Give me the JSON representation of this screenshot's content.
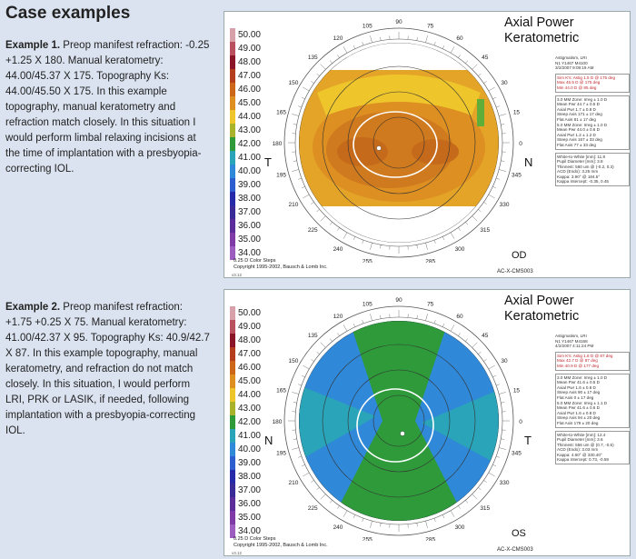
{
  "heading": "Case examples",
  "scale_labels": [
    "50.00",
    "49.00",
    "48.00",
    "47.00",
    "46.00",
    "45.00",
    "44.00",
    "43.00",
    "42.00",
    "41.00",
    "40.00",
    "39.00",
    "38.00",
    "37.00",
    "36.00",
    "35.00",
    "34.00"
  ],
  "scale_colors": [
    "#d8a0a8",
    "#b85060",
    "#8a1428",
    "#b33d1c",
    "#cc6618",
    "#dd9020",
    "#eec52a",
    "#a8b22a",
    "#2e9a3a",
    "#2aa4b8",
    "#2f88d8",
    "#2c5ed0",
    "#262aa8",
    "#3a2a98",
    "#5c2c9a",
    "#7e3aa6",
    "#9c5cc0"
  ],
  "examples": [
    {
      "label": "Example 1.",
      "text": " Preop manifest refraction: -0.25 +1.25 X 180. Manual keratometry: 44.00/45.37 X 175. Topography Ks: 44.00/45.50 X 175. In this example topography, manual keratometry and refraction match closely. In this situation I would perform limbal relaxing incisions at the time of implantation with a presbyopia-correcting IOL.",
      "map": {
        "title_line1": "Axial Power",
        "title_line2": "Keratometric",
        "side_left": "T",
        "side_right": "N",
        "eye": "OD",
        "foot_line1": "0.25 D Color Steps",
        "foot_line2": "Copyright 1995-2002, Bausch & Lomb Inc.",
        "device_id": "AC-X-CMS003",
        "version": "v3.12",
        "info": [
          "Astigmatism, LRI",
          "N1 Y1467 M4100",
          "3/2/2007 9:09:19 AM"
        ],
        "sim_k": [
          "Sim K's: Astig 1.5 D @ 175 deg",
          "Max 45.5 D @ 175 deg",
          "Min 44.0 D @ 85 deg"
        ],
        "zones": [
          "3.0 MM Zone: Irreg ± 1.0 D",
          "Mean Pwr 44.7 ± 0.5 D",
          "Axial Pwr 1.7 ± 0.8 D",
          "Steep Axis 171 ± 17 deg",
          "Flat Axis 81 ± 17 deg",
          "5.0 MM Zone: Irreg ± 1.0 D",
          "Mean Pwr 44.0 ± 0.6 D",
          "Axial Pwr 1.2 ± 1.2 D",
          "Steep Axis 167 ± 33 deg",
          "Flat Axis 77 ± 33 deg"
        ],
        "misc": [
          "White-to-White [mm]: 11.8",
          "Pupil Diameter [mm]: 3.8",
          "Thinnest: 560 um @ (-0.2, 0.3)",
          "ACD (Endo): 3.25 mm",
          "Kappa: 3.90° @ 184.5°",
          "Kappa Intercept: -0.35, 0.45"
        ],
        "angles": [
          "120",
          "105",
          "90",
          "75",
          "60",
          "135",
          "45",
          "150",
          "30",
          "165",
          "15",
          "180",
          "0",
          "195",
          "345",
          "210",
          "330",
          "225",
          "315",
          "240",
          "300",
          "255",
          "270",
          "285"
        ],
        "palette": "warm"
      }
    },
    {
      "label": "Example 2.",
      "text": " Preop manifest refraction: +1.75 +0.25 X 75. Manual keratometry: 41.00/42.37 X 95. Topography Ks: 40.9/42.7 X 87. In this example topography, manual keratometry, and refraction do not match closely. In this situation, I would perform LRI, PRK or LASIK, if needed, following implantation with a presbyopia-correcting IOL.",
      "map": {
        "title_line1": "Axial Power",
        "title_line2": "Keratometric",
        "side_left": "N",
        "side_right": "T",
        "eye": "OS",
        "foot_line1": "0.25 D Color Steps",
        "foot_line2": "Copyright 1995-2002, Bausch & Lomb Inc.",
        "device_id": "AC-X-CMS003",
        "version": "v3.12",
        "info": [
          "Astigmatism, LRI",
          "N1 Y1467 M4168",
          "4/2/2007 4:11:24 PM"
        ],
        "sim_k": [
          "Sim K's: Astig 1.8 D @ 87 deg",
          "Max 42.7 D @ 87 deg",
          "Min 40.9 D @ 177 deg"
        ],
        "zones": [
          "3.0 MM Zone: Irreg ± 1.0 D",
          "Mean Pwr 41.6 ± 0.5 D",
          "Axial Pwr 1.6 ± 0.8 D",
          "Steep Axis 90 ± 17 deg",
          "Flat Axis 0 ± 17 deg",
          "5.0 MM Zone: Irreg ± 1.1 D",
          "Mean Pwr 41.6 ± 0.6 D",
          "Axial Pwr 1.6 ± 0.8 D",
          "Steep Axis 94 ± 20 deg",
          "Flat Axis 179 ± 20 deg"
        ],
        "misc": [
          "White-to-White [mm]: 12.4",
          "Pupil Diameter [mm]: 3.6",
          "Thinnest: 556 um @ (0.7, -0.5)",
          "ACD (Endo): 3.03 mm",
          "Kappa: 4.60° @ 330.40°",
          "Kappa Intercept: 0.73, -0.59"
        ],
        "angles": [
          "120",
          "105",
          "90",
          "75",
          "60",
          "135",
          "45",
          "150",
          "30",
          "165",
          "15",
          "180",
          "0",
          "195",
          "345",
          "210",
          "330",
          "225",
          "315",
          "240",
          "300",
          "255",
          "270",
          "285"
        ],
        "palette": "cool"
      }
    }
  ]
}
